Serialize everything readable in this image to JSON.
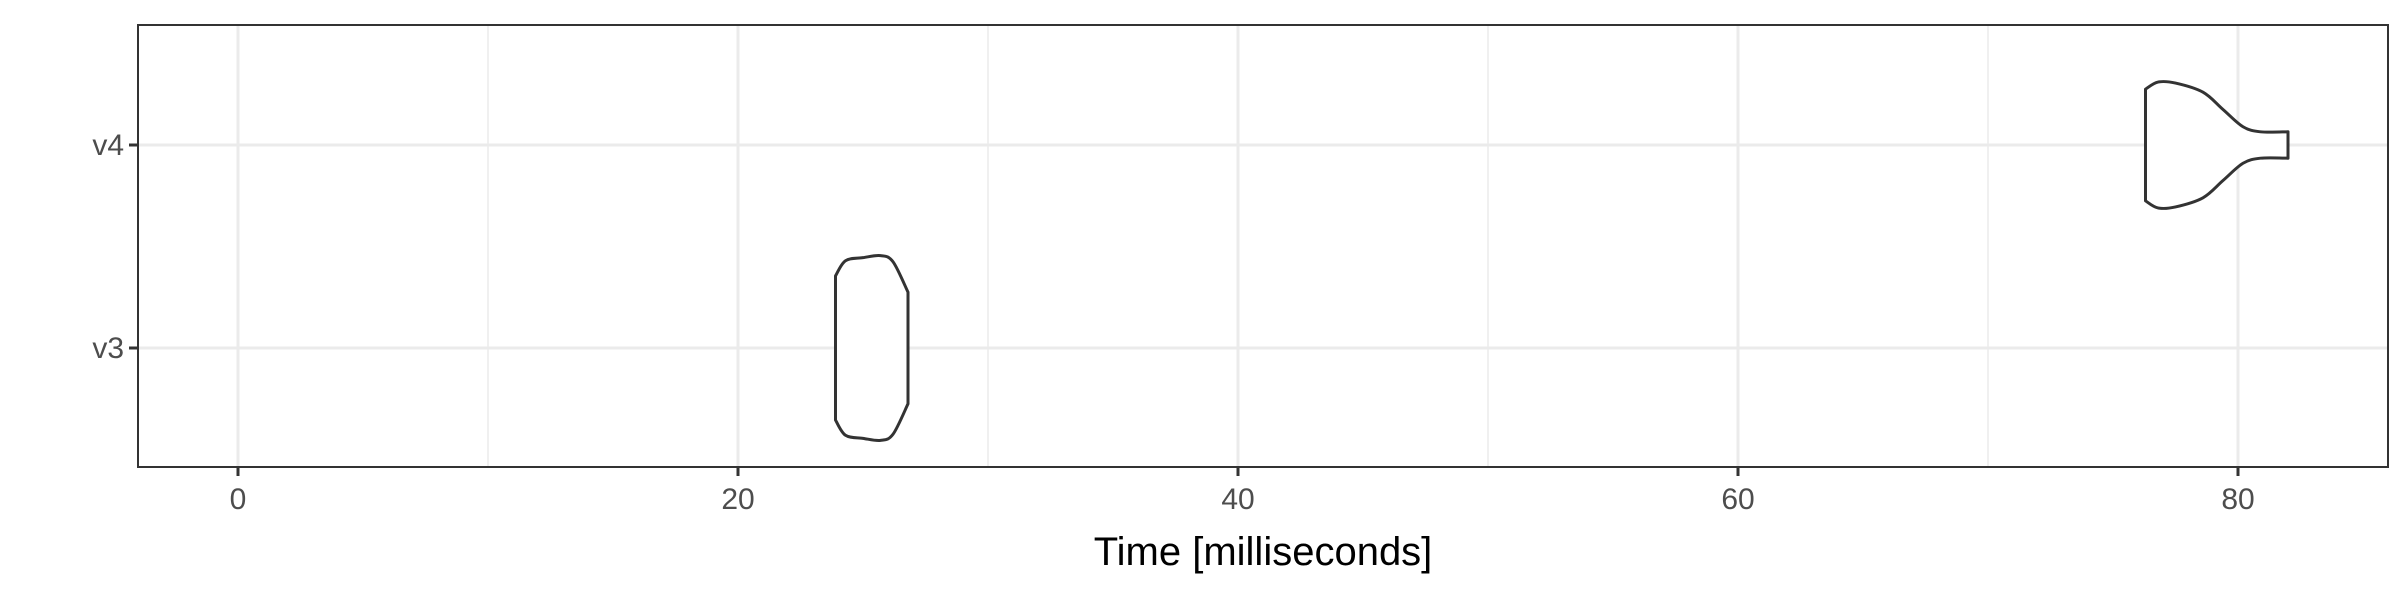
{
  "chart_data": {
    "type": "violin",
    "orientation": "horizontal",
    "title": "",
    "xlabel": "Time [milliseconds]",
    "ylabel": "",
    "xlim": [
      -4,
      86
    ],
    "x_ticks": [
      0,
      20,
      40,
      60,
      80
    ],
    "x_tick_labels": [
      "0",
      "20",
      "40",
      "60",
      "80"
    ],
    "x_minor_ticks": [
      10,
      30,
      50,
      70
    ],
    "categories": [
      "v3",
      "v4"
    ],
    "grid": true,
    "legend": "none",
    "colors": {
      "outline": "#333333",
      "fill": "#ffffff",
      "grid": "#ebebeb",
      "text": "#4d4d4d"
    },
    "series": [
      {
        "category": "v3",
        "min": 23.9,
        "max": 26.8,
        "profile": [
          [
            23.9,
            0.71
          ],
          [
            24.3,
            0.86
          ],
          [
            25.0,
            0.89
          ],
          [
            25.7,
            0.91
          ],
          [
            26.2,
            0.85
          ],
          [
            26.8,
            0.55
          ]
        ]
      },
      {
        "category": "v4",
        "min": 76.3,
        "max": 82.0,
        "profile": [
          [
            76.3,
            0.55
          ],
          [
            76.8,
            0.62
          ],
          [
            77.5,
            0.61
          ],
          [
            78.6,
            0.52
          ],
          [
            79.4,
            0.35
          ],
          [
            80.2,
            0.18
          ],
          [
            80.9,
            0.13
          ],
          [
            82.0,
            0.13
          ]
        ]
      }
    ]
  }
}
